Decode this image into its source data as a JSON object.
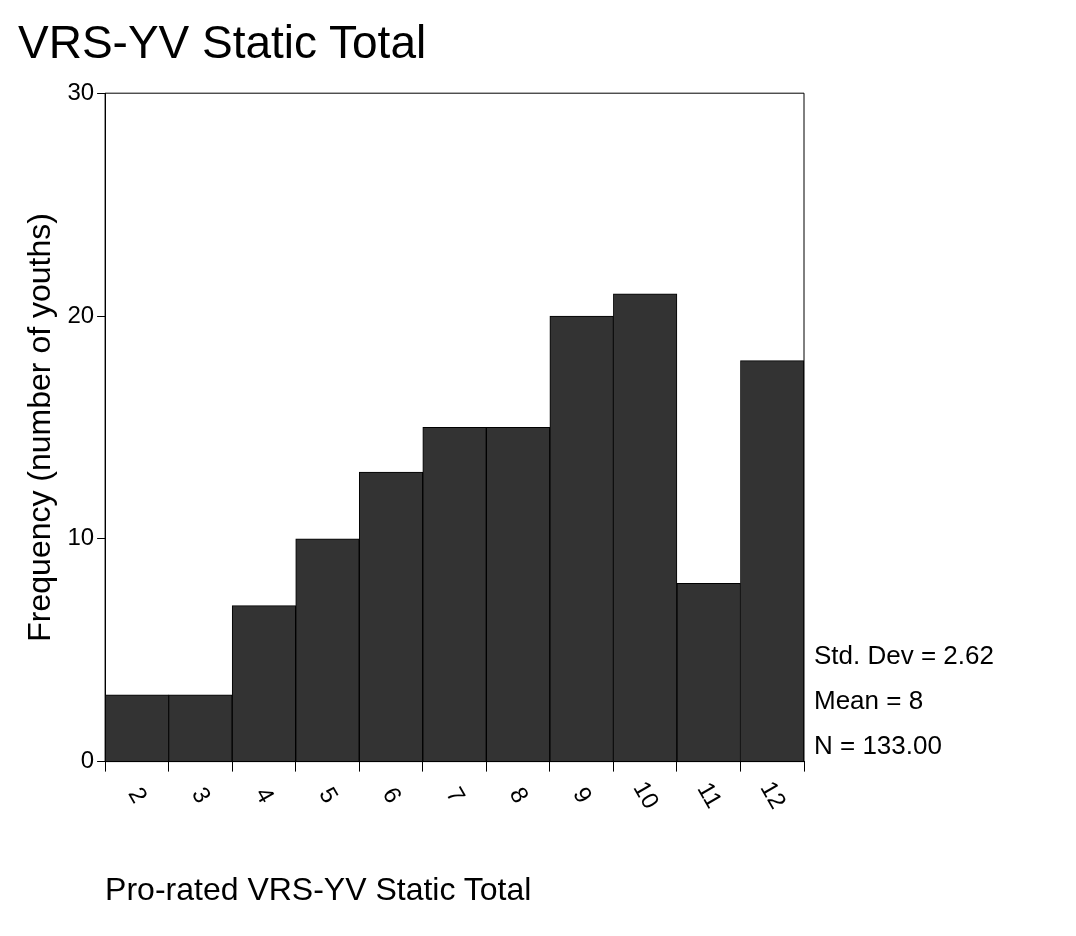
{
  "chart_data": {
    "type": "histogram",
    "title": "VRS-YV Static Total",
    "xlabel": "Pro-rated VRS-YV Static Total",
    "ylabel": "Frequency (number of youths)",
    "bins": [
      1.5,
      2.5,
      3.5,
      4.5,
      5.5,
      6.5,
      7.5,
      8.5,
      9.5,
      10.5,
      11.5,
      12.5
    ],
    "values": [
      3,
      3,
      7,
      10,
      13,
      15,
      15,
      20,
      21,
      8,
      18
    ],
    "color": "#333333",
    "xlim": [
      1.5,
      12.5
    ],
    "xticks": [
      2,
      3,
      4,
      5,
      6,
      7,
      8,
      9,
      10,
      11,
      12
    ],
    "ylim": [
      0,
      30
    ],
    "yticks": [
      0,
      10,
      20,
      30
    ],
    "grid": false,
    "legend": false,
    "annotations": [
      "Std. Dev = 2.62",
      "Mean = 8",
      "N = 133.00"
    ]
  }
}
